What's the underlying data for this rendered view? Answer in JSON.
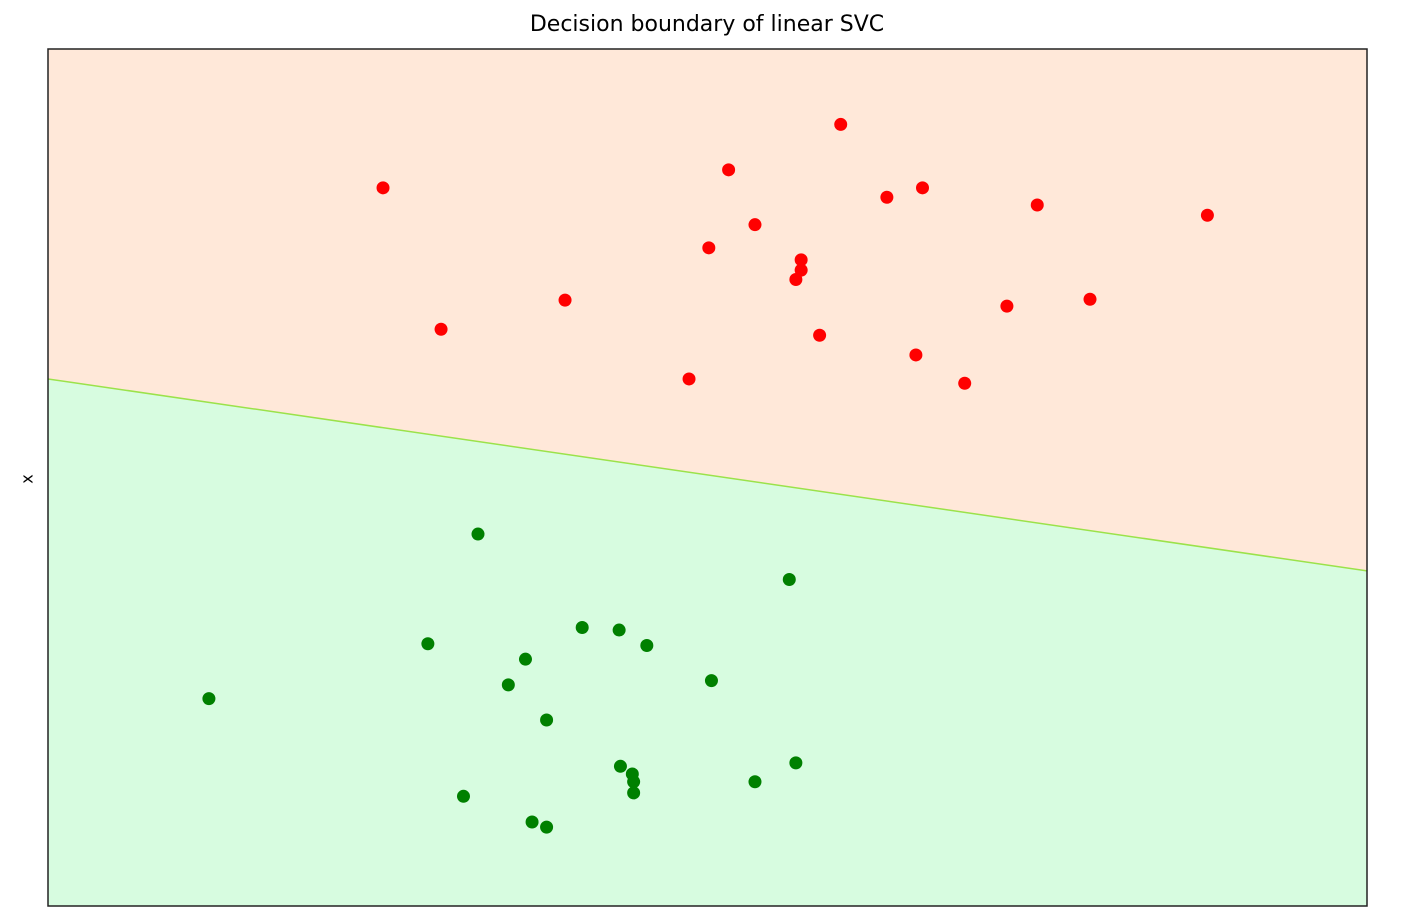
{
  "chart_data": {
    "type": "scatter",
    "title": "Decision boundary of linear SVC",
    "xlabel": "",
    "ylabel": "x",
    "xlim": [
      0,
      100
    ],
    "ylim": [
      0,
      100
    ],
    "grid": false,
    "legend": "none",
    "decision_boundary": {
      "x": [
        0,
        100
      ],
      "y": [
        61.5,
        39.1
      ],
      "color": "#9be24a",
      "upper_region_color": "#ffe8d9",
      "lower_region_color": "#d7fce0"
    },
    "series": [
      {
        "color": "#ff0000",
        "points": [
          [
            60.1,
            91.2
          ],
          [
            51.6,
            85.9
          ],
          [
            25.4,
            83.8
          ],
          [
            63.6,
            82.7
          ],
          [
            66.3,
            83.8
          ],
          [
            75.0,
            81.8
          ],
          [
            87.9,
            80.6
          ],
          [
            53.6,
            79.5
          ],
          [
            50.1,
            76.8
          ],
          [
            57.1,
            75.4
          ],
          [
            57.1,
            74.2
          ],
          [
            56.7,
            73.1
          ],
          [
            39.2,
            70.7
          ],
          [
            79.0,
            70.8
          ],
          [
            72.7,
            70.0
          ],
          [
            29.8,
            67.3
          ],
          [
            58.5,
            66.6
          ],
          [
            65.8,
            64.3
          ],
          [
            48.6,
            61.5
          ],
          [
            69.5,
            61.0
          ]
        ]
      },
      {
        "color": "#008000",
        "points": [
          [
            32.6,
            43.4
          ],
          [
            56.2,
            38.1
          ],
          [
            40.5,
            32.5
          ],
          [
            43.3,
            32.2
          ],
          [
            28.8,
            30.6
          ],
          [
            45.4,
            30.4
          ],
          [
            36.2,
            28.8
          ],
          [
            34.9,
            25.8
          ],
          [
            50.3,
            26.3
          ],
          [
            12.2,
            24.2
          ],
          [
            37.8,
            21.7
          ],
          [
            43.4,
            16.3
          ],
          [
            56.7,
            16.7
          ],
          [
            44.3,
            15.4
          ],
          [
            44.4,
            14.5
          ],
          [
            53.6,
            14.5
          ],
          [
            44.4,
            13.2
          ],
          [
            31.5,
            12.8
          ],
          [
            36.7,
            9.8
          ],
          [
            37.8,
            9.2
          ]
        ]
      }
    ]
  }
}
